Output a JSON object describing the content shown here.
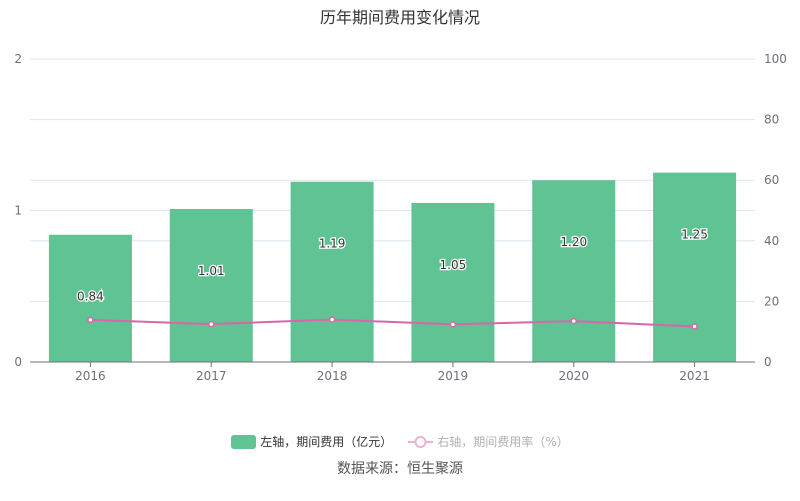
{
  "title": "历年期间费用变化情况",
  "legend": {
    "bar_label": "左轴，期间费用（亿元）",
    "line_label": "右轴，期间费用率（%）"
  },
  "source": "数据来源：恒生聚源",
  "colors": {
    "bar": "#5fc393",
    "line": "#d966a8",
    "grid": "#e0e6f1",
    "axis": "#6e7079"
  },
  "chart_data": {
    "type": "bar",
    "title": "历年期间费用变化情况",
    "categories": [
      "2016",
      "2017",
      "2018",
      "2019",
      "2020",
      "2021"
    ],
    "series": [
      {
        "name": "左轴，期间费用（亿元）",
        "type": "bar",
        "axis": "left",
        "values": [
          0.84,
          1.01,
          1.19,
          1.05,
          1.2,
          1.25
        ]
      },
      {
        "name": "右轴，期间费用率（%）",
        "type": "line",
        "axis": "right",
        "values": [
          13.9,
          12.5,
          14.0,
          12.4,
          13.5,
          11.7
        ]
      }
    ],
    "left_axis": {
      "ticks": [
        "0",
        "1",
        "2"
      ],
      "ylim": [
        0,
        2
      ]
    },
    "right_axis": {
      "ticks": [
        "0",
        "20",
        "40",
        "60",
        "80",
        "100"
      ],
      "ylim": [
        0,
        100
      ]
    },
    "xlabel": "",
    "ylabel": "",
    "grid": true,
    "legend_position": "bottom"
  }
}
